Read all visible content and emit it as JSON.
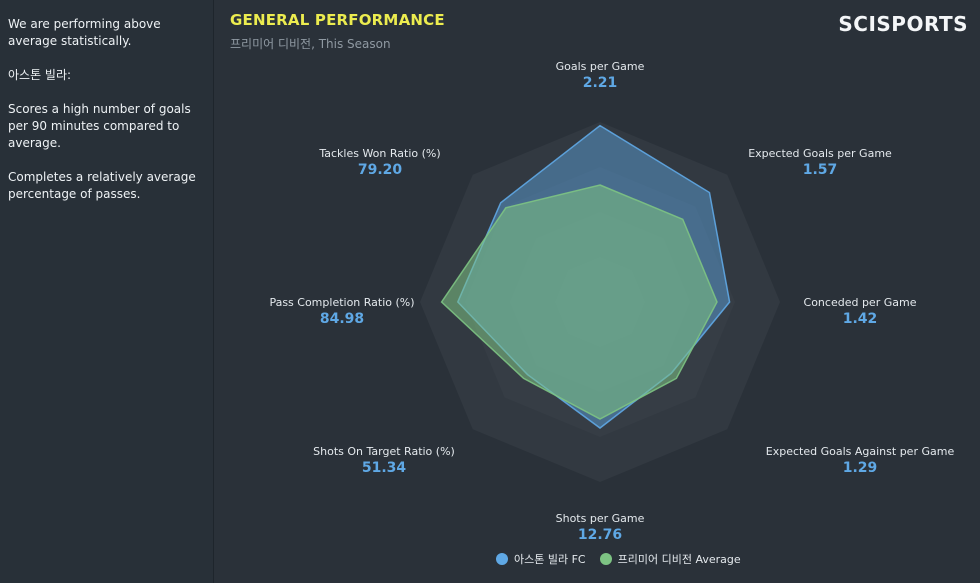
{
  "sidebar": {
    "paragraphs": [
      "We are performing above average statistically.",
      "아스톤 빌라:",
      "Scores a high number of goals per 90 minutes compared to average.",
      "Completes a relatively average percentage of passes."
    ]
  },
  "header": {
    "title": "GENERAL PERFORMANCE",
    "subtitle": "프리미어 디비전, This Season",
    "brand": "SCISPORTS"
  },
  "chart_data": {
    "type": "radar",
    "title": "GENERAL PERFORMANCE",
    "subtitle": "프리미어 디비전, This Season",
    "axes": [
      {
        "name": "Goals per Game",
        "value": "2.21"
      },
      {
        "name": "Expected Goals per Game",
        "value": "1.57"
      },
      {
        "name": "Conceded per Game",
        "value": "1.42"
      },
      {
        "name": "Expected Goals Against per Game",
        "value": "1.29"
      },
      {
        "name": "Shots per Game",
        "value": "12.76"
      },
      {
        "name": "Shots On Target Ratio (%)",
        "value": "51.34"
      },
      {
        "name": "Pass Completion Ratio (%)",
        "value": "84.98"
      },
      {
        "name": "Tackles Won Ratio (%)",
        "value": "79.20"
      }
    ],
    "series": [
      {
        "name": "아스톤 빌라 FC",
        "color": "#5fa8e5",
        "values": [
          0.98,
          0.86,
          0.72,
          0.56,
          0.7,
          0.57,
          0.79,
          0.78
        ]
      },
      {
        "name": "프리미어 디비전 Average",
        "color": "#7dc383",
        "values": [
          0.65,
          0.65,
          0.65,
          0.6,
          0.65,
          0.6,
          0.88,
          0.74
        ]
      }
    ],
    "rings": 4,
    "legend_position": "bottom"
  }
}
